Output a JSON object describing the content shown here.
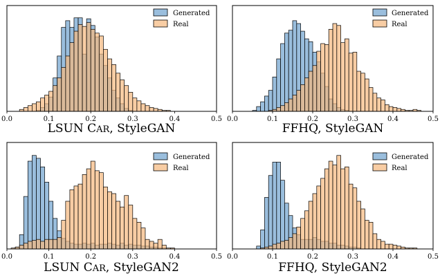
{
  "chart_data": [
    {
      "type": "histogram",
      "title": "LSUN Car, StyleGAN",
      "title_parts": [
        "LSUN C",
        "AR",
        ", StyleGAN"
      ],
      "xlim": [
        0.0,
        0.5
      ],
      "xticks": [
        "0.0",
        "0.1",
        "0.2",
        "0.3",
        "0.4",
        "0.5"
      ],
      "legend_position": "top-right",
      "bin_start": 0.03,
      "bin_width": 0.01,
      "series": [
        {
          "name": "Generated",
          "color": "#6fa3cf",
          "counts": [
            0,
            0,
            0,
            0,
            0.01,
            0.04,
            0.08,
            0.15,
            0.35,
            0.58,
            0.88,
            0.95,
            0.88,
            0.98,
            0.98,
            0.6,
            0.97,
            0.9,
            0.78,
            0.6,
            0.48,
            0.35,
            0.22,
            0.14,
            0.08,
            0.03,
            0.01,
            0,
            0,
            0,
            0,
            0
          ]
        },
        {
          "name": "Real",
          "color": "#f5b87e",
          "counts": [
            0.02,
            0.04,
            0.06,
            0.08,
            0.1,
            0.14,
            0.17,
            0.21,
            0.27,
            0.35,
            0.46,
            0.58,
            0.72,
            0.84,
            0.91,
            0.89,
            0.93,
            0.86,
            0.82,
            0.79,
            0.65,
            0.55,
            0.49,
            0.4,
            0.33,
            0.27,
            0.2,
            0.14,
            0.11,
            0.08,
            0.06,
            0.04,
            0.03,
            0.02,
            0.01,
            0.01
          ]
        }
      ]
    },
    {
      "type": "histogram",
      "title": "FFHQ, StyleGAN",
      "title_parts": [
        "FFHQ, StyleGAN",
        "",
        ""
      ],
      "xlim": [
        0.0,
        0.5
      ],
      "xticks": [
        "0.0",
        "0.1",
        "0.2",
        "0.3",
        "0.4",
        "0.5"
      ],
      "legend_position": "top-right",
      "bin_start": 0.05,
      "bin_width": 0.01,
      "series": [
        {
          "name": "Generated",
          "color": "#6fa3cf",
          "counts": [
            0.01,
            0.05,
            0.1,
            0.16,
            0.22,
            0.36,
            0.55,
            0.71,
            0.82,
            0.85,
            0.95,
            0.92,
            0.84,
            0.76,
            0.73,
            0.62,
            0.52,
            0.4,
            0.26,
            0.13,
            0.08,
            0.04,
            0.02,
            0.01,
            0,
            0,
            0,
            0,
            0,
            0
          ]
        },
        {
          "name": "Real",
          "color": "#f5b87e",
          "counts": [
            0,
            0,
            0,
            0,
            0.01,
            0.02,
            0.04,
            0.06,
            0.09,
            0.13,
            0.17,
            0.22,
            0.28,
            0.35,
            0.42,
            0.48,
            0.63,
            0.71,
            0.7,
            0.86,
            0.92,
            0.9,
            0.72,
            0.76,
            0.61,
            0.62,
            0.42,
            0.4,
            0.34,
            0.25,
            0.19,
            0.14,
            0.12,
            0.07,
            0.05,
            0.04,
            0.03,
            0.02,
            0.01,
            0.01,
            0.02,
            0.01
          ]
        }
      ]
    },
    {
      "type": "histogram",
      "title": "LSUN Car, StyleGAN2",
      "title_parts": [
        "LSUN C",
        "AR",
        ", StyleGAN2"
      ],
      "xlim": [
        0.0,
        0.5
      ],
      "xticks": [
        "0.0",
        "0.1",
        "0.2",
        "0.3",
        "0.4",
        "0.5"
      ],
      "legend_position": "top-right",
      "bin_start": 0.01,
      "bin_width": 0.01,
      "series": [
        {
          "name": "Generated",
          "color": "#6fa3cf",
          "counts": [
            0,
            0.02,
            0.15,
            0.55,
            0.92,
            0.98,
            0.95,
            0.86,
            0.7,
            0.5,
            0.32,
            0.19,
            0.11,
            0.08,
            0.06,
            0.05,
            0.05,
            0.06,
            0.05,
            0.06,
            0.04,
            0.05,
            0.05,
            0.06,
            0.05,
            0.04,
            0.06,
            0.04,
            0.05,
            0.04,
            0.04,
            0.03,
            0.03,
            0.02,
            0.02,
            0.01,
            0.01,
            0,
            0,
            0
          ]
        },
        {
          "name": "Real",
          "color": "#f5b87e",
          "counts": [
            0.01,
            0.02,
            0.04,
            0.06,
            0.08,
            0.09,
            0.1,
            0.08,
            0.1,
            0.1,
            0.1,
            0.12,
            0.3,
            0.5,
            0.62,
            0.66,
            0.68,
            0.78,
            0.84,
            0.92,
            0.82,
            0.8,
            0.65,
            0.6,
            0.58,
            0.5,
            0.44,
            0.56,
            0.46,
            0.32,
            0.28,
            0.22,
            0.1,
            0.08,
            0.06,
            0.1,
            0.04,
            0.01,
            0.01
          ]
        }
      ]
    },
    {
      "type": "histogram",
      "title": "FFHQ, StyleGAN2",
      "title_parts": [
        "FFHQ, StyleGAN2",
        "",
        ""
      ],
      "xlim": [
        0.0,
        0.5
      ],
      "xticks": [
        "0.0",
        "0.1",
        "0.2",
        "0.3",
        "0.4",
        "0.5"
      ],
      "legend_position": "top-right",
      "bin_start": 0.05,
      "bin_width": 0.01,
      "series": [
        {
          "name": "Generated",
          "color": "#6fa3cf",
          "counts": [
            0,
            0.03,
            0.2,
            0.54,
            0.77,
            0.91,
            0.91,
            0.72,
            0.48,
            0.35,
            0.22,
            0.15,
            0.1,
            0.1,
            0.1,
            0.12,
            0.1,
            0.08,
            0.08,
            0.06,
            0.06,
            0.04,
            0.04,
            0.03,
            0.02,
            0.02,
            0.01,
            0,
            0,
            0
          ]
        },
        {
          "name": "Real",
          "color": "#f5b87e",
          "counts": [
            0,
            0,
            0.01,
            0.02,
            0.03,
            0.05,
            0.06,
            0.08,
            0.09,
            0.12,
            0.16,
            0.23,
            0.32,
            0.4,
            0.5,
            0.58,
            0.66,
            0.74,
            0.84,
            0.92,
            0.88,
            0.98,
            0.84,
            0.86,
            0.68,
            0.64,
            0.5,
            0.42,
            0.3,
            0.28,
            0.16,
            0.1,
            0.08,
            0.05,
            0.05,
            0.04,
            0.03,
            0.02,
            0.01,
            0.01,
            0.01
          ]
        }
      ]
    }
  ]
}
